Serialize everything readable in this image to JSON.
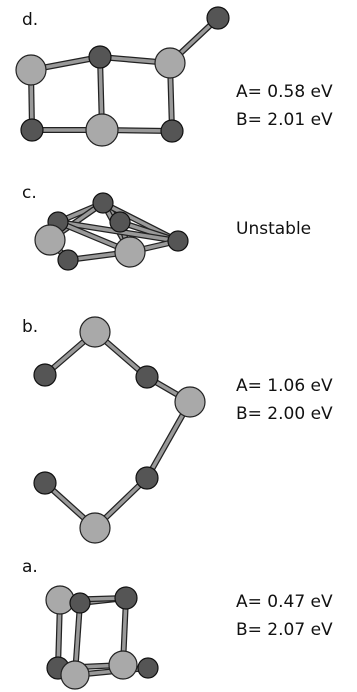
{
  "panels": [
    {
      "label": "d.",
      "lines": [
        "A= 0.58 eV",
        "B= 2.01 eV"
      ]
    },
    {
      "label": "c.",
      "lines": [
        "Unstable"
      ]
    },
    {
      "label": "b.",
      "lines": [
        "A= 1.06 eV",
        "B= 2.00 eV"
      ]
    },
    {
      "label": "a.",
      "lines": [
        "A= 0.47 eV",
        "B= 2.07 eV"
      ]
    }
  ]
}
